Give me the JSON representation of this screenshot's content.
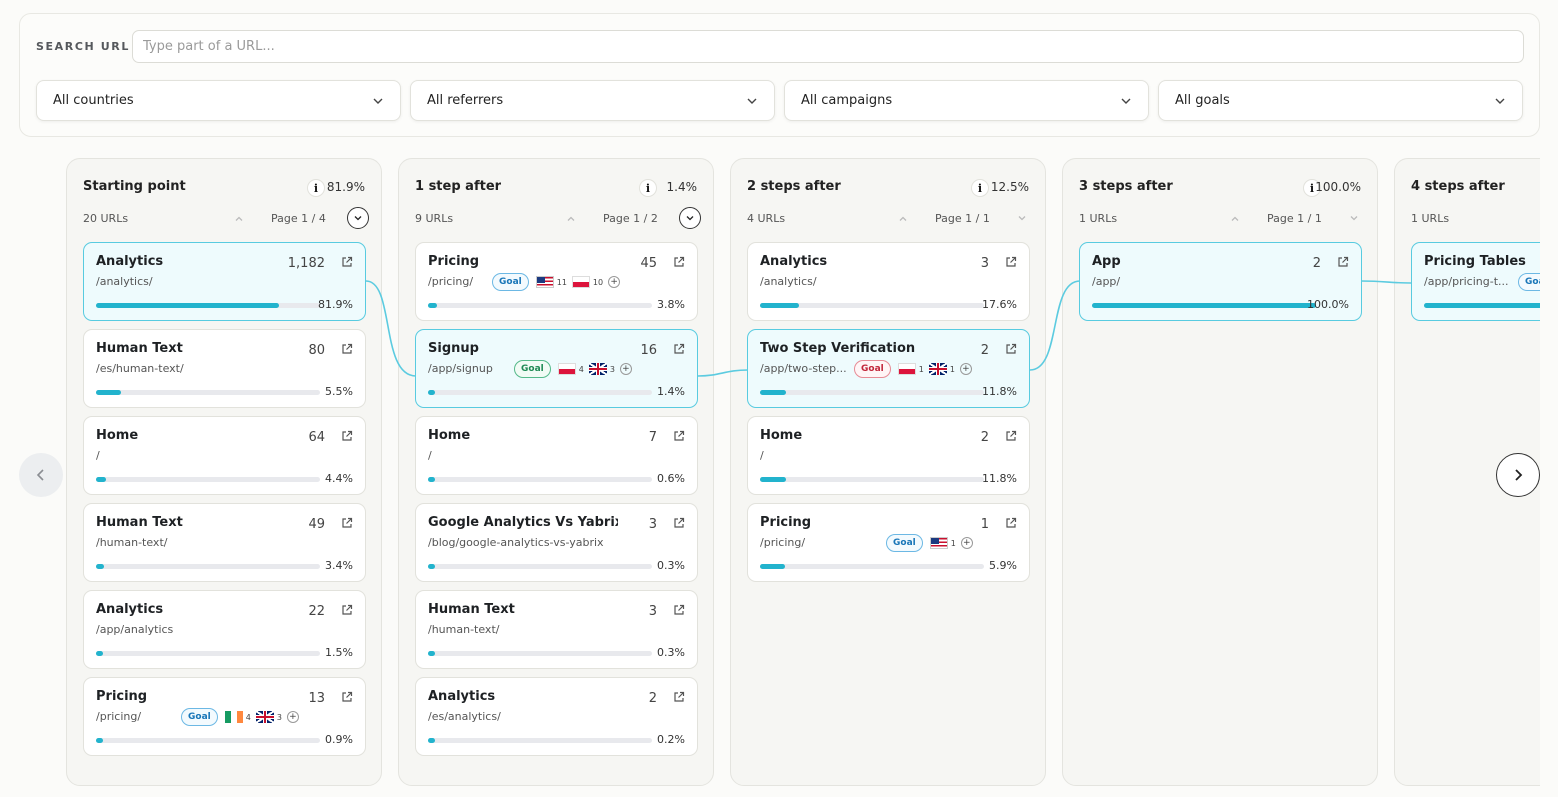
{
  "search": {
    "label": "SEARCH URL",
    "placeholder": "Type part of a URL..."
  },
  "filters": [
    {
      "label": "All countries"
    },
    {
      "label": "All referrers"
    },
    {
      "label": "All campaigns"
    },
    {
      "label": "All goals"
    }
  ],
  "columns": [
    {
      "title": "Starting point",
      "percent": "81.9%",
      "url_count": "20 URLs",
      "page": "Page 1 / 4",
      "cards": [
        {
          "title": "Analytics",
          "count": "1,182",
          "path": "/analytics/",
          "percent": "81.9%",
          "fill": 0.819,
          "selected": true
        },
        {
          "title": "Human Text",
          "count": "80",
          "path": "/es/human-text/",
          "percent": "5.5%",
          "fill": 0.055
        },
        {
          "title": "Home",
          "count": "64",
          "path": "/",
          "percent": "4.4%",
          "fill": 0.044
        },
        {
          "title": "Human Text",
          "count": "49",
          "path": "/human-text/",
          "percent": "3.4%",
          "fill": 0.034
        },
        {
          "title": "Analytics",
          "count": "22",
          "path": "/app/analytics",
          "percent": "1.5%",
          "fill": 0.015
        },
        {
          "title": "Pricing",
          "count": "13",
          "path": "/pricing/",
          "percent": "0.9%",
          "fill": 0.009,
          "goal": "Goal",
          "goal_style": "blue",
          "flags": [
            {
              "country": "ie",
              "count": "4"
            },
            {
              "country": "gb",
              "count": "3"
            }
          ]
        }
      ]
    },
    {
      "title": "1 step after",
      "percent": "1.4%",
      "url_count": "9 URLs",
      "page": "Page 1 / 2",
      "cards": [
        {
          "title": "Pricing",
          "count": "45",
          "path": "/pricing/",
          "percent": "3.8%",
          "fill": 0.038,
          "goal": "Goal",
          "goal_style": "blue",
          "flags": [
            {
              "country": "us",
              "count": "11"
            },
            {
              "country": "pl",
              "count": "10"
            }
          ]
        },
        {
          "title": "Signup",
          "count": "16",
          "path": "/app/signup",
          "percent": "1.4%",
          "fill": 0.014,
          "selected": true,
          "goal": "Goal",
          "goal_style": "green",
          "flags": [
            {
              "country": "pl",
              "count": "4"
            },
            {
              "country": "gb",
              "count": "3"
            }
          ]
        },
        {
          "title": "Home",
          "count": "7",
          "path": "/",
          "percent": "0.6%",
          "fill": 0.006
        },
        {
          "title": "Google Analytics Vs Yabrix",
          "count": "3",
          "path": "/blog/google-analytics-vs-yabrix",
          "percent": "0.3%",
          "fill": 0.003
        },
        {
          "title": "Human Text",
          "count": "3",
          "path": "/human-text/",
          "percent": "0.3%",
          "fill": 0.003
        },
        {
          "title": "Analytics",
          "count": "2",
          "path": "/es/analytics/",
          "percent": "0.2%",
          "fill": 0.002
        }
      ]
    },
    {
      "title": "2 steps after",
      "percent": "12.5%",
      "url_count": "4 URLs",
      "page": "Page 1 / 1",
      "cards": [
        {
          "title": "Analytics",
          "count": "3",
          "path": "/analytics/",
          "percent": "17.6%",
          "fill": 0.176
        },
        {
          "title": "Two Step Verification",
          "count": "2",
          "path": "/app/two-step...",
          "percent": "11.8%",
          "fill": 0.118,
          "selected": true,
          "goal": "Goal",
          "goal_style": "red",
          "flags": [
            {
              "country": "pl",
              "count": "1"
            },
            {
              "country": "gb",
              "count": "1"
            }
          ]
        },
        {
          "title": "Home",
          "count": "2",
          "path": "/",
          "percent": "11.8%",
          "fill": 0.118
        },
        {
          "title": "Pricing",
          "count": "1",
          "path": "/pricing/",
          "percent": "5.9%",
          "fill": 0.059,
          "goal": "Goal",
          "goal_style": "blue",
          "flags": [
            {
              "country": "us",
              "count": "1"
            }
          ]
        }
      ]
    },
    {
      "title": "3 steps after",
      "percent": "100.0%",
      "url_count": "1 URLs",
      "page": "Page 1 / 1",
      "cards": [
        {
          "title": "App",
          "count": "2",
          "path": "/app/",
          "percent": "100.0%",
          "fill": 1.0,
          "selected": true
        }
      ]
    },
    {
      "title": "4 steps after",
      "percent": "",
      "url_count": "1 URLs",
      "page": "",
      "cards": [
        {
          "title": "Pricing Tables",
          "count": "",
          "path": "/app/pricing-t...",
          "percent": "",
          "fill": 1.0,
          "selected": true,
          "goal": "Goal",
          "goal_style": "blue"
        }
      ]
    }
  ],
  "colors": {
    "accent": "#22b3cd",
    "selected_border": "#58cbe0",
    "selected_bg": "#eefbfd"
  },
  "icons": {
    "chevron": "chevron-down-icon",
    "external": "external-link-icon",
    "info": "info-icon",
    "prev": "chevron-left-icon",
    "next": "chevron-right-icon"
  }
}
